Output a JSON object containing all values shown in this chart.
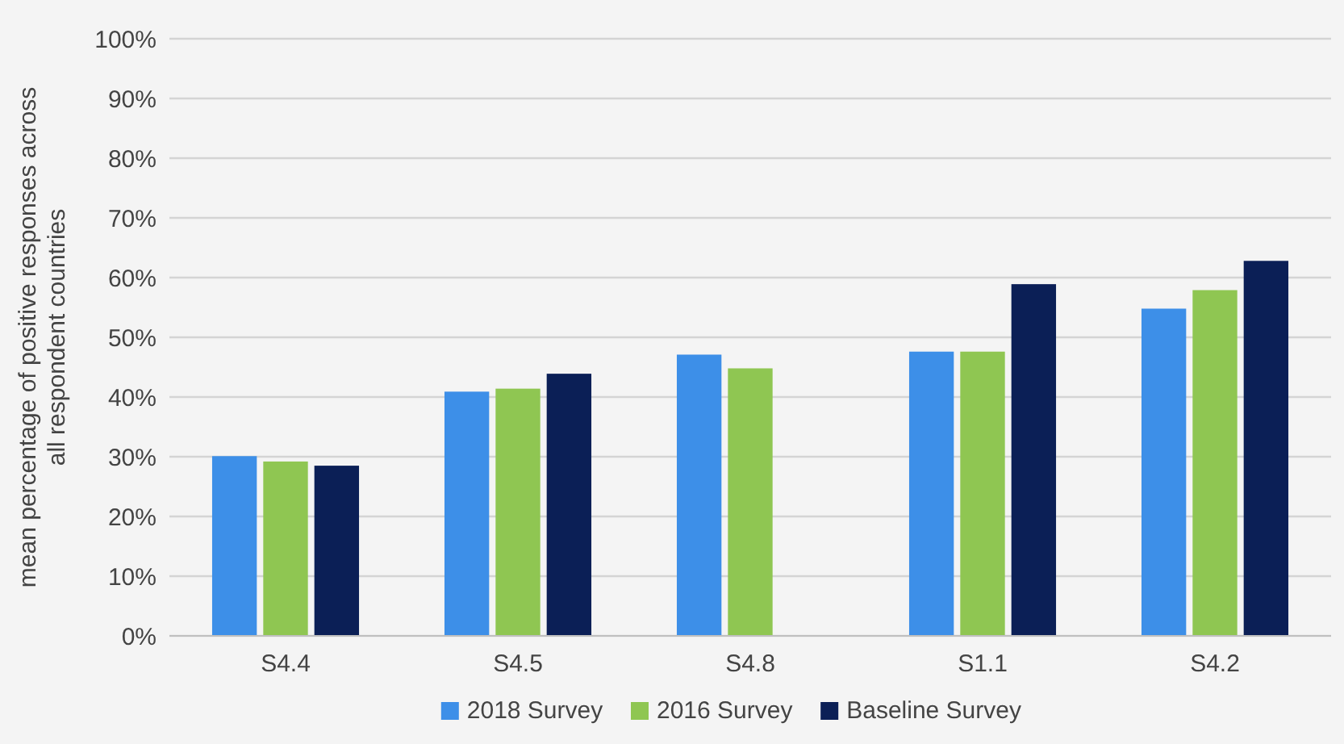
{
  "chart_data": {
    "type": "bar",
    "ylabel": "mean percentage of positive responses across all respondent countries",
    "categories": [
      "S4.4",
      "S4.5",
      "S4.8",
      "S1.1",
      "S4.2"
    ],
    "series": [
      {
        "name": "2018 Survey",
        "color": "#3d8fe8",
        "values": [
          30.1,
          40.9,
          47.1,
          47.6,
          54.8
        ]
      },
      {
        "name": "2016 Survey",
        "color": "#8fc652",
        "values": [
          29.2,
          41.4,
          44.8,
          47.6,
          57.9
        ]
      },
      {
        "name": "Baseline Survey",
        "color": "#0b1f56",
        "values": [
          28.5,
          43.9,
          null,
          58.9,
          62.8
        ]
      }
    ],
    "ylim": [
      0,
      100
    ],
    "yticks": [
      {
        "value": 0,
        "label": "0%"
      },
      {
        "value": 10,
        "label": "10%"
      },
      {
        "value": 20,
        "label": "20%"
      },
      {
        "value": 30,
        "label": "30%"
      },
      {
        "value": 40,
        "label": "40%"
      },
      {
        "value": 50,
        "label": "50%"
      },
      {
        "value": 60,
        "label": "60%"
      },
      {
        "value": 70,
        "label": "70%"
      },
      {
        "value": 80,
        "label": "80%"
      },
      {
        "value": 90,
        "label": "90%"
      },
      {
        "value": 100,
        "label": "100%"
      }
    ],
    "grid": "y",
    "legend": "bottom"
  }
}
